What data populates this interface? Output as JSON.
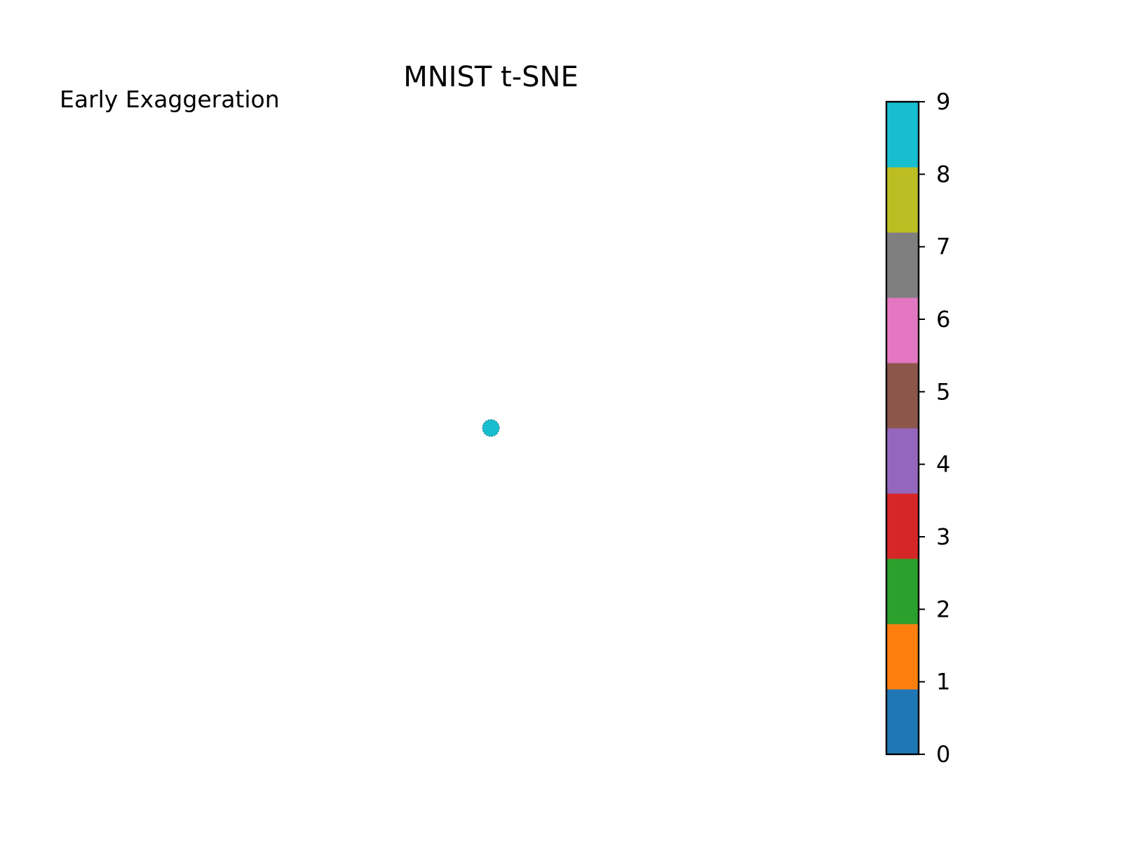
{
  "chart_data": {
    "type": "scatter",
    "title": "MNIST t-SNE",
    "annotation": "Early Exaggeration",
    "axes_visible": false,
    "grid": false,
    "points": [
      {
        "x": 0,
        "y": 0,
        "label": 9
      }
    ],
    "colorbar": {
      "orientation": "vertical",
      "placement": "right",
      "range": [
        0,
        9
      ],
      "ticks": [
        "0",
        "1",
        "2",
        "3",
        "4",
        "5",
        "6",
        "7",
        "8",
        "9"
      ],
      "colors": [
        "#1f77b4",
        "#ff7f0e",
        "#2ca02c",
        "#d62728",
        "#9467bd",
        "#8c564b",
        "#e377c2",
        "#7f7f7f",
        "#bcbd22",
        "#17becf"
      ]
    }
  }
}
